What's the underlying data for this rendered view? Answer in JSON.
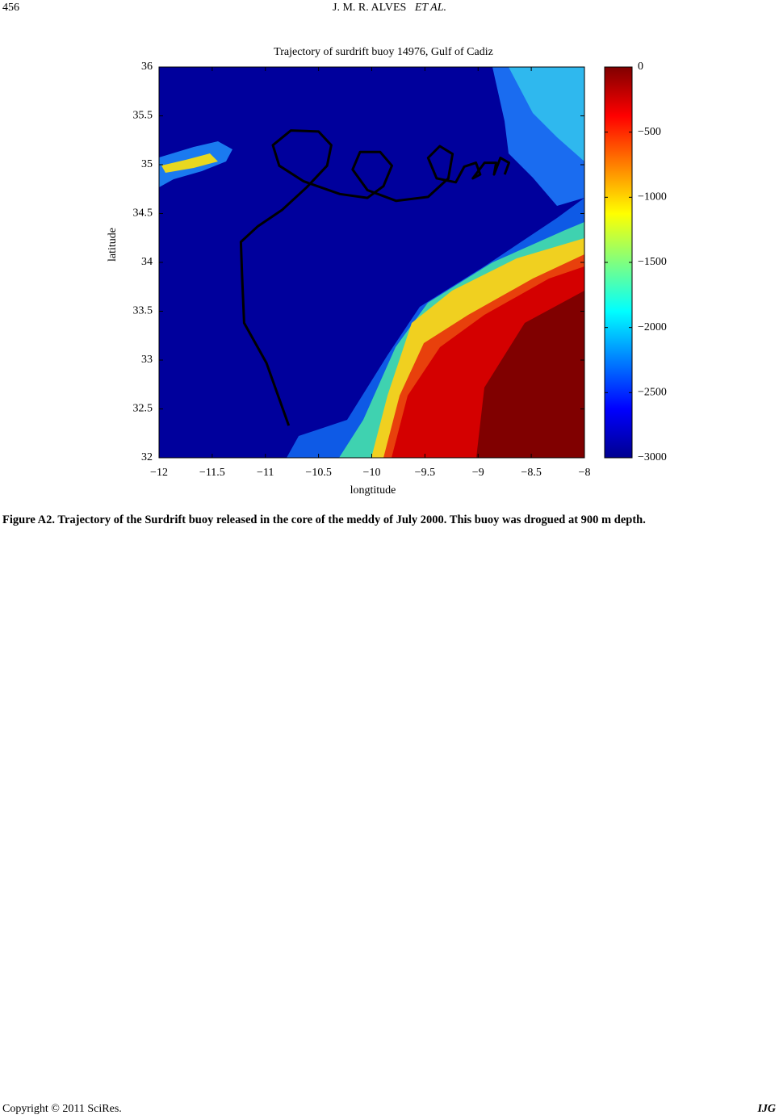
{
  "header": {
    "page": "456",
    "authors": "J. M. R. ALVES",
    "etal": "ET AL."
  },
  "chart_data": {
    "type": "contour",
    "title": "Trajectory of surdrift buoy 14976, Gulf of Cadiz",
    "xlabel": "longtitude",
    "ylabel": "latitude",
    "xlim": [
      -12,
      -8
    ],
    "ylim": [
      32,
      36
    ],
    "xticks": [
      {
        "value": -12,
        "label": "−12"
      },
      {
        "value": -11.5,
        "label": "−11.5"
      },
      {
        "value": -11,
        "label": "−11"
      },
      {
        "value": -10.5,
        "label": "−10.5"
      },
      {
        "value": -10,
        "label": "−10"
      },
      {
        "value": -9.5,
        "label": "−9.5"
      },
      {
        "value": -9,
        "label": "−9"
      },
      {
        "value": -8.5,
        "label": "−8.5"
      },
      {
        "value": -8,
        "label": "−8"
      }
    ],
    "yticks": [
      32,
      32.5,
      33,
      33.5,
      34,
      34.5,
      35,
      35.5,
      36
    ],
    "colormap": "jet",
    "clim": [
      -3000,
      0
    ],
    "cticks": [
      {
        "value": -3000,
        "label": "−3000"
      },
      {
        "value": -2500,
        "label": "−2500"
      },
      {
        "value": -2000,
        "label": "−2000"
      },
      {
        "value": -1500,
        "label": "−1500"
      },
      {
        "value": -1000,
        "label": "−1000"
      },
      {
        "value": -500,
        "label": "−500"
      },
      0
    ],
    "color": "#000000",
    "x": [
      -10.78,
      -10.99,
      -11.2,
      -11.22,
      -11.23,
      -11.07,
      -10.84,
      -10.61,
      -10.42,
      -10.38,
      -10.5,
      -10.76,
      -10.93,
      -10.87,
      -10.64,
      -10.3,
      -10.04,
      -9.89,
      -9.81,
      -9.92,
      -10.11,
      -10.18,
      -10.04,
      -9.77,
      -9.47,
      -9.28,
      -9.24,
      -9.36,
      -9.47,
      -9.39,
      -9.21,
      -9.13,
      -9.02,
      -8.98,
      -9.05,
      -8.94,
      -8.83,
      -8.85,
      -8.79,
      -8.71,
      -8.75
    ],
    "values": [
      32.33,
      32.97,
      33.38,
      33.88,
      34.21,
      34.37,
      34.54,
      34.77,
      34.99,
      35.2,
      35.34,
      35.35,
      35.2,
      34.99,
      34.83,
      34.7,
      34.66,
      34.78,
      34.99,
      35.13,
      35.13,
      34.95,
      34.74,
      34.63,
      34.67,
      34.86,
      35.11,
      35.19,
      35.07,
      34.86,
      34.82,
      34.98,
      35.02,
      34.9,
      34.86,
      35.02,
      35.02,
      34.9,
      35.07,
      35.02,
      34.9
    ]
  },
  "caption": "Figure A2. Trajectory of the Surdrift buoy released in the core of the meddy of July 2000. This buoy was drogued at 900 m depth.",
  "footer": {
    "copyright": "Copyright © 2011 SciRes.",
    "journal": "IJG"
  }
}
